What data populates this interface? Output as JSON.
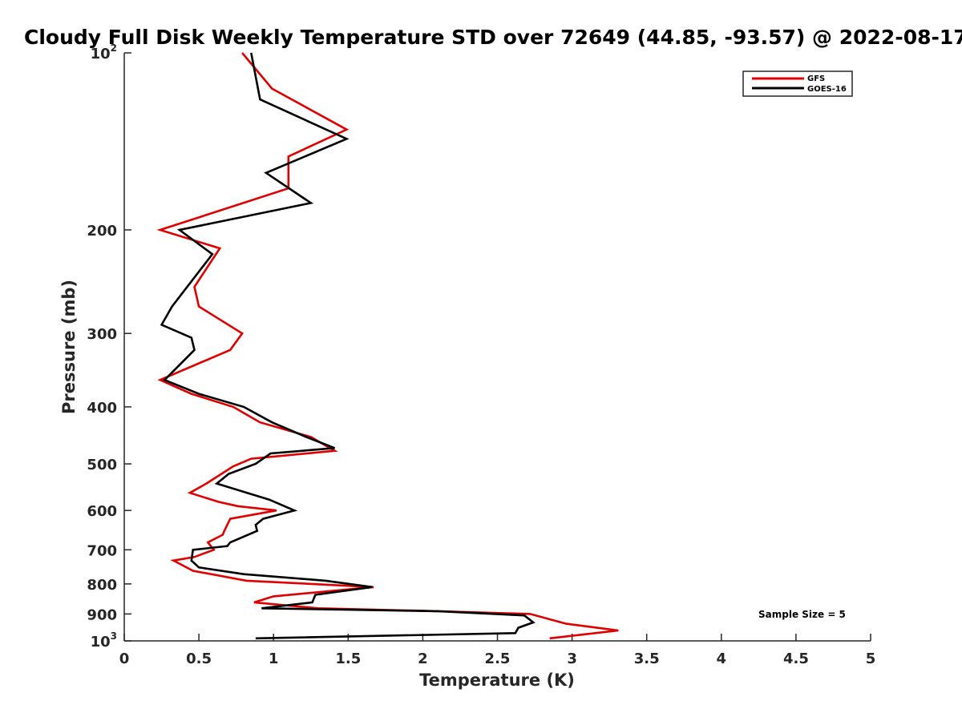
{
  "chart_data": {
    "type": "line",
    "title": "Cloudy Full Disk Weekly Temperature STD over 72649 (44.85, -93.57) @ 2022-08-17",
    "xlabel": "Temperature (K)",
    "ylabel": "Pressure (mb)",
    "xlim": [
      0,
      5
    ],
    "ylim": [
      100,
      1000
    ],
    "y_scale": "log",
    "y_reversed": true,
    "x_ticks": [
      "0",
      "0.5",
      "1",
      "1.5",
      "2",
      "2.5",
      "3",
      "3.5",
      "4",
      "4.5",
      "5"
    ],
    "y_ticks": [
      {
        "value": 100,
        "base": "10",
        "exp": "2"
      },
      {
        "value": 200,
        "label": "200"
      },
      {
        "value": 300,
        "label": "300"
      },
      {
        "value": 400,
        "label": "400"
      },
      {
        "value": 500,
        "label": "500"
      },
      {
        "value": 600,
        "label": "600"
      },
      {
        "value": 700,
        "label": "700"
      },
      {
        "value": 800,
        "label": "800"
      },
      {
        "value": 900,
        "label": "900"
      },
      {
        "value": 1000,
        "base": "10",
        "exp": "3"
      }
    ],
    "legend_position": "top-right",
    "annotation": "Sample Size = 5",
    "series": [
      {
        "name": "GFS",
        "color": "#e00000",
        "points": [
          [
            0.79,
            100
          ],
          [
            0.99,
            115
          ],
          [
            1.49,
            135
          ],
          [
            1.1,
            150
          ],
          [
            1.1,
            170
          ],
          [
            0.24,
            200
          ],
          [
            0.64,
            215
          ],
          [
            0.47,
            250
          ],
          [
            0.5,
            270
          ],
          [
            0.79,
            300
          ],
          [
            0.71,
            320
          ],
          [
            0.24,
            360
          ],
          [
            0.45,
            380
          ],
          [
            0.73,
            400
          ],
          [
            0.91,
            425
          ],
          [
            1.25,
            450
          ],
          [
            1.41,
            475
          ],
          [
            0.85,
            490
          ],
          [
            0.73,
            505
          ],
          [
            0.55,
            540
          ],
          [
            0.44,
            560
          ],
          [
            0.63,
            580
          ],
          [
            0.76,
            590
          ],
          [
            1.02,
            600
          ],
          [
            0.71,
            620
          ],
          [
            0.67,
            650
          ],
          [
            0.66,
            660
          ],
          [
            0.56,
            680
          ],
          [
            0.6,
            700
          ],
          [
            0.47,
            720
          ],
          [
            0.33,
            730
          ],
          [
            0.46,
            760
          ],
          [
            0.82,
            790
          ],
          [
            1.67,
            810
          ],
          [
            1.0,
            840
          ],
          [
            0.87,
            860
          ],
          [
            1.3,
            880
          ],
          [
            2.1,
            890
          ],
          [
            2.72,
            900
          ],
          [
            2.96,
            935
          ],
          [
            3.31,
            960
          ],
          [
            2.85,
            990
          ]
        ]
      },
      {
        "name": "GOES-16",
        "color": "#000000",
        "points": [
          [
            0.85,
            100
          ],
          [
            0.91,
            120
          ],
          [
            1.49,
            140
          ],
          [
            0.95,
            160
          ],
          [
            1.25,
            180
          ],
          [
            0.37,
            200
          ],
          [
            0.59,
            220
          ],
          [
            0.32,
            270
          ],
          [
            0.25,
            290
          ],
          [
            0.45,
            305
          ],
          [
            0.47,
            320
          ],
          [
            0.27,
            360
          ],
          [
            0.5,
            380
          ],
          [
            0.8,
            400
          ],
          [
            0.99,
            425
          ],
          [
            1.22,
            450
          ],
          [
            1.41,
            470
          ],
          [
            0.98,
            480
          ],
          [
            0.88,
            500
          ],
          [
            0.7,
            520
          ],
          [
            0.62,
            540
          ],
          [
            0.97,
            575
          ],
          [
            1.14,
            600
          ],
          [
            0.93,
            620
          ],
          [
            0.88,
            635
          ],
          [
            0.89,
            650
          ],
          [
            0.71,
            680
          ],
          [
            0.69,
            690
          ],
          [
            0.46,
            700
          ],
          [
            0.45,
            730
          ],
          [
            0.5,
            750
          ],
          [
            0.8,
            770
          ],
          [
            1.35,
            790
          ],
          [
            1.66,
            810
          ],
          [
            1.28,
            835
          ],
          [
            1.26,
            860
          ],
          [
            0.92,
            880
          ],
          [
            2.1,
            890
          ],
          [
            2.68,
            905
          ],
          [
            2.74,
            930
          ],
          [
            2.64,
            950
          ],
          [
            2.62,
            970
          ],
          [
            0.88,
            990
          ]
        ]
      }
    ]
  }
}
